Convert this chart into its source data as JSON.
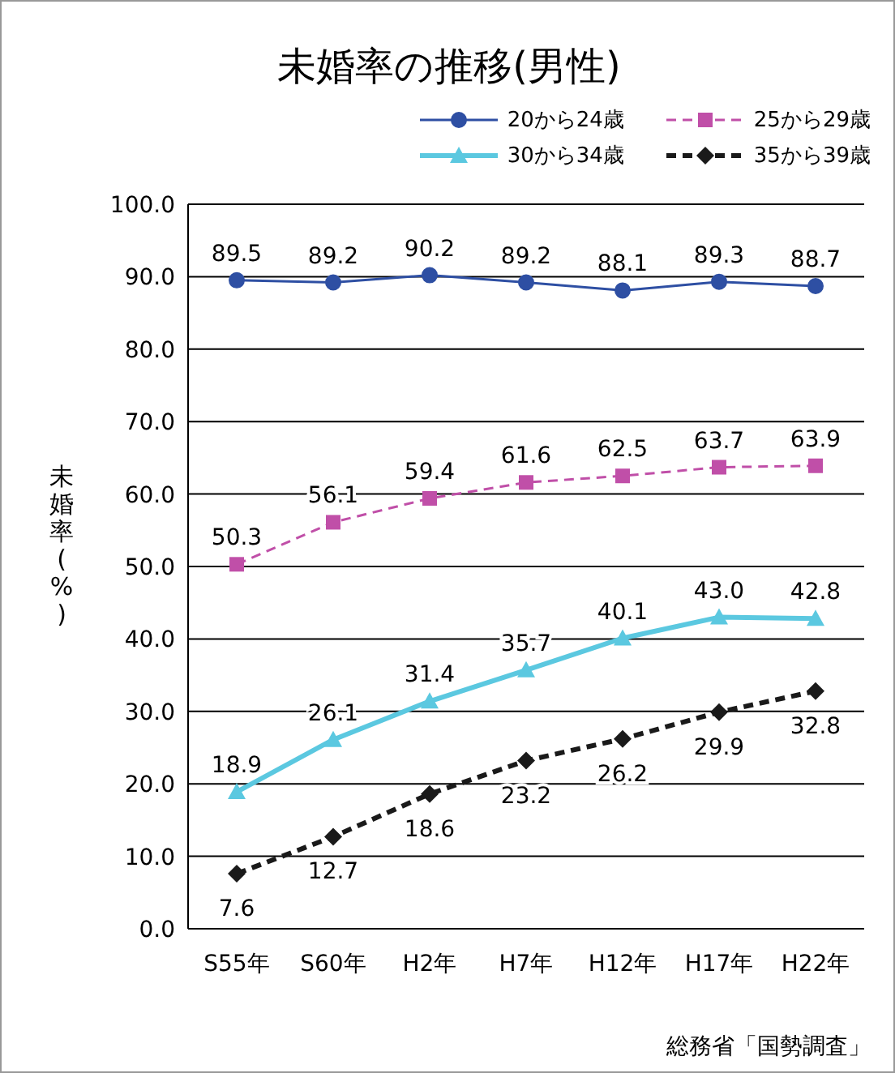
{
  "chart_data": {
    "type": "line",
    "title": "未婚率の推移(男性)",
    "ylabel": "未婚率(%)",
    "annotations": [
      "総務省「国勢調査」"
    ],
    "categories": [
      "S55年",
      "S60年",
      "H2年",
      "H7年",
      "H12年",
      "H17年",
      "H22年"
    ],
    "series": [
      {
        "name": "20から24歳",
        "color": "#2e4fa3",
        "marker": "circle",
        "line_style": "solid",
        "values": [
          89.5,
          89.2,
          90.2,
          89.2,
          88.1,
          89.3,
          88.7
        ],
        "value_labels": [
          "89.5",
          "89.2",
          "90.2",
          "89.2",
          "88.1",
          "89.3",
          "88.7"
        ]
      },
      {
        "name": "25から29歳",
        "color": "#c04fa8",
        "marker": "square",
        "line_style": "dashed",
        "values": [
          50.3,
          56.1,
          59.4,
          61.6,
          62.5,
          63.7,
          63.9
        ],
        "value_labels": [
          "50.3",
          "56.1",
          "59.4",
          "61.6",
          "62.5",
          "63.7",
          "63.9"
        ]
      },
      {
        "name": "30から34歳",
        "color": "#5bc8e0",
        "marker": "triangle",
        "line_style": "solid",
        "values": [
          18.9,
          26.1,
          31.4,
          35.7,
          40.1,
          43.0,
          42.8
        ],
        "value_labels": [
          "18.9",
          "26.1",
          "31.4",
          "35.7",
          "40.1",
          "43.0",
          "42.8"
        ]
      },
      {
        "name": "35から39歳",
        "color": "#1a1a1a",
        "marker": "diamond",
        "line_style": "dashed",
        "values": [
          7.6,
          12.7,
          18.6,
          23.2,
          26.2,
          29.9,
          32.8
        ],
        "value_labels": [
          "7.6",
          "12.7",
          "18.6",
          "23.2",
          "26.2",
          "29.9",
          "32.8"
        ]
      }
    ],
    "ylim": [
      0,
      100
    ],
    "yticks": [
      {
        "value": 0,
        "label": "0.0"
      },
      {
        "value": 10,
        "label": "10.0"
      },
      {
        "value": 20,
        "label": "20.0"
      },
      {
        "value": 30,
        "label": "30.0"
      },
      {
        "value": 40,
        "label": "40.0"
      },
      {
        "value": 50,
        "label": "50.0"
      },
      {
        "value": 60,
        "label": "60.0"
      },
      {
        "value": 70,
        "label": "70.0"
      },
      {
        "value": 80,
        "label": "80.0"
      },
      {
        "value": 90,
        "label": "90.0"
      },
      {
        "value": 100,
        "label": "100.0"
      }
    ],
    "grid": "y",
    "legend": "top right"
  }
}
